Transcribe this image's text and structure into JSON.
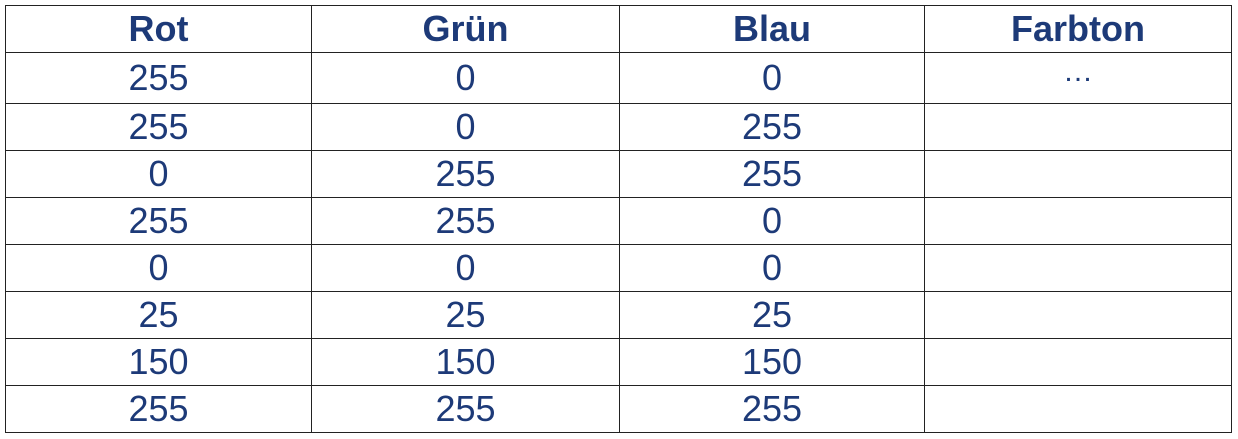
{
  "table": {
    "columns": [
      "Rot",
      "Grün",
      "Blau",
      "Farbton"
    ],
    "rows": [
      [
        "255",
        "0",
        "0",
        "…"
      ],
      [
        "255",
        "0",
        "255",
        ""
      ],
      [
        "0",
        "255",
        "255",
        ""
      ],
      [
        "255",
        "255",
        "0",
        ""
      ],
      [
        "0",
        "0",
        "0",
        ""
      ],
      [
        "25",
        "25",
        "25",
        ""
      ],
      [
        "150",
        "150",
        "150",
        ""
      ],
      [
        "255",
        "255",
        "255",
        ""
      ]
    ]
  },
  "colors": {
    "text": "#1d3a78",
    "border": "#222222",
    "background": "#ffffff"
  }
}
